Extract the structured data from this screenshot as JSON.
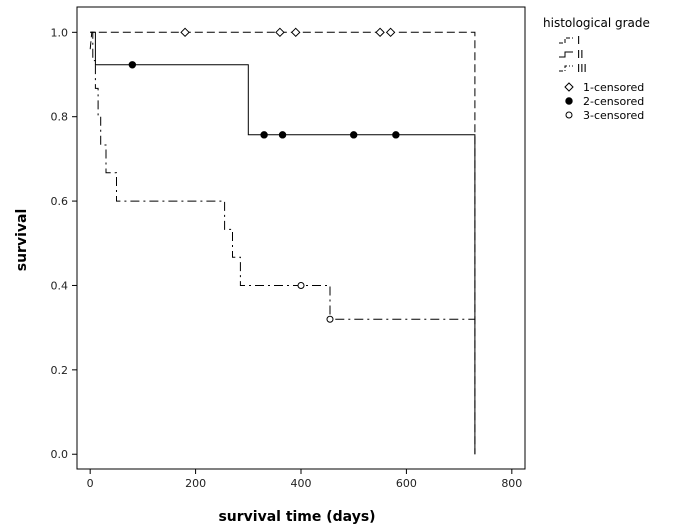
{
  "chart_data": {
    "type": "line",
    "subtype": "kaplan-meier step survival curve",
    "xlabel": "survival time (days)",
    "ylabel": "survival",
    "xlim": [
      -25,
      825
    ],
    "ylim": [
      -0.035,
      1.06
    ],
    "xticks": [
      0,
      200,
      400,
      600,
      800
    ],
    "yticks": [
      0.0,
      0.2,
      0.4,
      0.6,
      0.8,
      1.0
    ],
    "grid": false,
    "legend_position": "top-right outside plot",
    "legend_title": "histological grade",
    "series": [
      {
        "name": "I",
        "dash": "dashed",
        "steps": [
          [
            0,
            0.96
          ],
          [
            3,
            1.0
          ],
          [
            730,
            1.0
          ],
          [
            730,
            0.0
          ]
        ],
        "censored": [
          [
            180,
            1.0
          ],
          [
            360,
            1.0
          ],
          [
            390,
            1.0
          ],
          [
            550,
            1.0
          ],
          [
            570,
            1.0
          ]
        ],
        "censor_marker": "diamond-open",
        "censor_label": "1-censored"
      },
      {
        "name": "II",
        "dash": "solid",
        "steps": [
          [
            0,
            1.0
          ],
          [
            10,
            1.0
          ],
          [
            10,
            0.923
          ],
          [
            300,
            0.923
          ],
          [
            300,
            0.757
          ],
          [
            730,
            0.757
          ],
          [
            730,
            0.0
          ]
        ],
        "censored": [
          [
            80,
            0.923
          ],
          [
            330,
            0.757
          ],
          [
            365,
            0.757
          ],
          [
            500,
            0.757
          ],
          [
            580,
            0.757
          ]
        ],
        "censor_marker": "circle-filled",
        "censor_label": "2-censored"
      },
      {
        "name": "III",
        "dash": "dash-dot",
        "steps": [
          [
            0,
            1.0
          ],
          [
            5,
            1.0
          ],
          [
            5,
            0.933
          ],
          [
            10,
            0.933
          ],
          [
            10,
            0.867
          ],
          [
            15,
            0.867
          ],
          [
            15,
            0.8
          ],
          [
            20,
            0.8
          ],
          [
            20,
            0.733
          ],
          [
            30,
            0.733
          ],
          [
            30,
            0.667
          ],
          [
            50,
            0.667
          ],
          [
            50,
            0.6
          ],
          [
            255,
            0.6
          ],
          [
            255,
            0.533
          ],
          [
            270,
            0.533
          ],
          [
            270,
            0.467
          ],
          [
            285,
            0.467
          ],
          [
            285,
            0.4
          ],
          [
            455,
            0.4
          ],
          [
            455,
            0.32
          ],
          [
            730,
            0.32
          ]
        ],
        "censored": [
          [
            400,
            0.4
          ],
          [
            455,
            0.32
          ]
        ],
        "censor_marker": "circle-open",
        "censor_label": "3-censored"
      }
    ]
  }
}
